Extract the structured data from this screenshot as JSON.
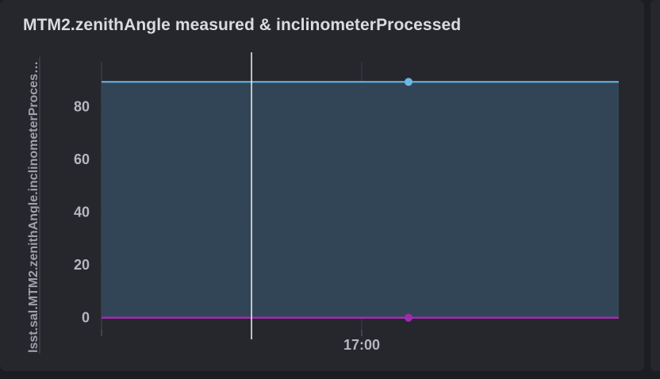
{
  "panel": {
    "title": "MTM2.zenithAngle measured & inclinometerProcessed"
  },
  "chart_data": {
    "type": "area",
    "ylabel": "lsst.sal.MTM2.zenithAngle.inclinometerProcessed",
    "ylim": [
      -4,
      97
    ],
    "yticks": [
      0,
      20,
      40,
      60,
      80
    ],
    "xticks": [
      "17:00"
    ],
    "grid": true,
    "cursor_fraction": 0.29,
    "series": [
      {
        "color": "#6bb8e8",
        "fill": "#33475a",
        "values": [
          89.4,
          89.4,
          89.4,
          89.4,
          89.4,
          89.4,
          89.4,
          89.4,
          89.4,
          89.4,
          89.4
        ],
        "highlight_index": 6
      },
      {
        "color": "#a12bb0",
        "values": [
          0,
          0,
          0,
          0,
          0,
          0,
          0,
          0,
          0,
          0,
          0
        ],
        "highlight_index": 6
      }
    ]
  }
}
